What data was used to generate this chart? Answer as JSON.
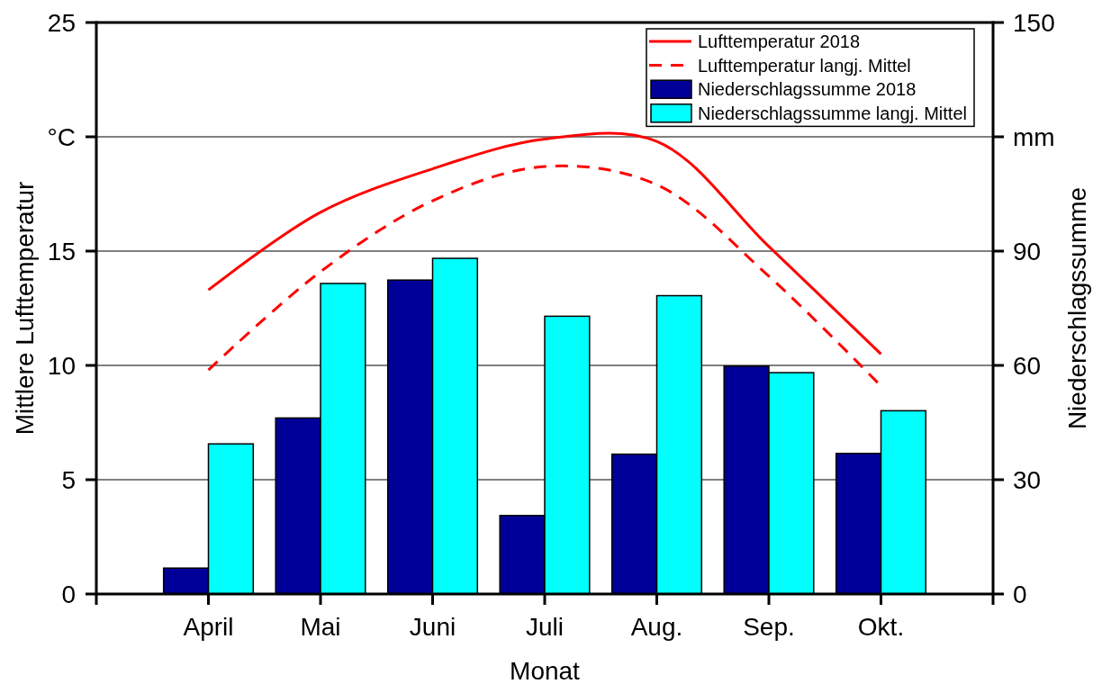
{
  "chart_data": {
    "type": "bar",
    "xlabel": "Monat",
    "ylabel": "Mittlere Lufttemperatur",
    "y2label": "Niederschlagssumme",
    "categories": [
      null,
      "April",
      "Mai",
      "Juni",
      "Juli",
      "Aug.",
      "Sep.",
      "Okt.",
      null
    ],
    "series": [
      {
        "name": "Lufttemperatur 2018",
        "type": "line",
        "line_style": "solid",
        "color": "#ff0000",
        "values": [
          null,
          13.3,
          16.7,
          18.6,
          19.9,
          19.8,
          15.2,
          10.5,
          null
        ]
      },
      {
        "name": "Lufttemperatur langj. Mittel",
        "type": "line",
        "line_style": "dashed",
        "color": "#ff0000",
        "values": [
          null,
          9.8,
          14.1,
          17.2,
          18.7,
          17.9,
          13.9,
          9.1,
          null
        ]
      },
      {
        "name": "Niederschlagssumme 2018",
        "axis": "y2",
        "color": "#000099",
        "values": [
          null,
          6.8,
          46.2,
          82.4,
          20.6,
          36.7,
          59.8,
          36.9,
          null
        ]
      },
      {
        "name": "Niederschlagssumme langj. Mittel",
        "axis": "y2",
        "color": "#00ffff",
        "values": [
          null,
          39.4,
          81.5,
          88.1,
          72.9,
          78.3,
          58.1,
          48.1,
          null
        ]
      }
    ],
    "ylim": [
      0,
      25
    ],
    "yticks": [
      0,
      5,
      10,
      15,
      {
        "value": 20,
        "label": "°C"
      },
      25
    ],
    "y2lim": [
      0,
      150
    ],
    "y2ticks": [
      0,
      30,
      60,
      90,
      {
        "value": 120,
        "label": "mm"
      },
      150
    ],
    "grid": "y",
    "legend": "top right"
  }
}
